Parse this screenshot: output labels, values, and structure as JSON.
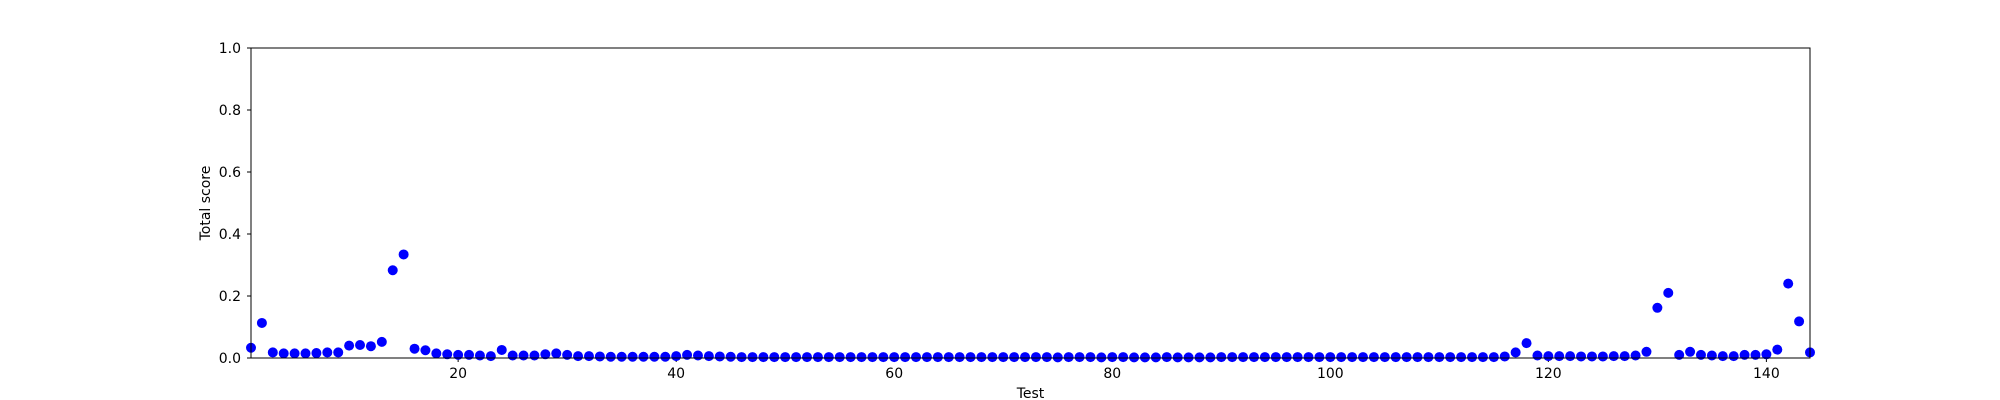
{
  "chart_data": {
    "type": "scatter",
    "title": "",
    "xlabel": "Test",
    "ylabel": "Total score",
    "xlim": [
      1,
      144
    ],
    "ylim": [
      0,
      1
    ],
    "x_ticks": [
      20,
      40,
      60,
      80,
      100,
      120,
      140
    ],
    "x_tick_labels": [
      "20",
      "40",
      "60",
      "80",
      "100",
      "120",
      "140"
    ],
    "y_ticks": [
      0,
      0.2,
      0.4,
      0.6,
      0.8,
      1.0
    ],
    "y_tick_labels": [
      "0.0",
      "0.2",
      "0.4",
      "0.6",
      "0.8",
      "1.0"
    ],
    "grid": false,
    "marker_color": "#0000ff",
    "series": [
      {
        "x": [
          1,
          2,
          3,
          4,
          5,
          6,
          7,
          8,
          9,
          10,
          11,
          12,
          13,
          14,
          15,
          16,
          17,
          18,
          19,
          20,
          21,
          22,
          23,
          24,
          25,
          26,
          27,
          28,
          29,
          30,
          31,
          32,
          33,
          34,
          35,
          36,
          37,
          38,
          39,
          40,
          41,
          42,
          43,
          44,
          45,
          46,
          47,
          48,
          49,
          50,
          51,
          52,
          53,
          54,
          55,
          56,
          57,
          58,
          59,
          60,
          61,
          62,
          63,
          64,
          65,
          66,
          67,
          68,
          69,
          70,
          71,
          72,
          73,
          74,
          75,
          76,
          77,
          78,
          79,
          80,
          81,
          82,
          83,
          84,
          85,
          86,
          87,
          88,
          89,
          90,
          91,
          92,
          93,
          94,
          95,
          96,
          97,
          98,
          99,
          100,
          101,
          102,
          103,
          104,
          105,
          106,
          107,
          108,
          109,
          110,
          111,
          112,
          113,
          114,
          115,
          116,
          117,
          118,
          119,
          120,
          121,
          122,
          123,
          124,
          125,
          126,
          127,
          128,
          129,
          130,
          131,
          132,
          133,
          134,
          135,
          136,
          137,
          138,
          139,
          140,
          141,
          142,
          143,
          144
        ],
        "y": [
          0.033,
          0.113,
          0.018,
          0.015,
          0.015,
          0.015,
          0.016,
          0.018,
          0.018,
          0.04,
          0.042,
          0.038,
          0.052,
          0.283,
          0.334,
          0.03,
          0.025,
          0.015,
          0.012,
          0.01,
          0.01,
          0.008,
          0.006,
          0.026,
          0.008,
          0.008,
          0.008,
          0.012,
          0.015,
          0.01,
          0.006,
          0.006,
          0.005,
          0.004,
          0.004,
          0.004,
          0.004,
          0.004,
          0.004,
          0.006,
          0.01,
          0.008,
          0.006,
          0.005,
          0.004,
          0.003,
          0.003,
          0.003,
          0.003,
          0.003,
          0.003,
          0.003,
          0.003,
          0.003,
          0.003,
          0.003,
          0.003,
          0.003,
          0.003,
          0.003,
          0.003,
          0.003,
          0.003,
          0.003,
          0.003,
          0.003,
          0.003,
          0.003,
          0.003,
          0.003,
          0.003,
          0.003,
          0.003,
          0.003,
          0.002,
          0.003,
          0.003,
          0.003,
          0.002,
          0.003,
          0.003,
          0.002,
          0.002,
          0.002,
          0.003,
          0.002,
          0.002,
          0.002,
          0.002,
          0.003,
          0.003,
          0.003,
          0.003,
          0.003,
          0.003,
          0.003,
          0.003,
          0.003,
          0.003,
          0.003,
          0.003,
          0.003,
          0.003,
          0.003,
          0.003,
          0.003,
          0.003,
          0.003,
          0.003,
          0.003,
          0.003,
          0.003,
          0.003,
          0.003,
          0.003,
          0.005,
          0.018,
          0.048,
          0.008,
          0.006,
          0.006,
          0.006,
          0.005,
          0.005,
          0.005,
          0.006,
          0.006,
          0.008,
          0.02,
          0.162,
          0.21,
          0.01,
          0.02,
          0.01,
          0.008,
          0.006,
          0.006,
          0.01,
          0.01,
          0.012,
          0.027,
          0.24,
          0.118,
          0.018
        ]
      }
    ]
  }
}
